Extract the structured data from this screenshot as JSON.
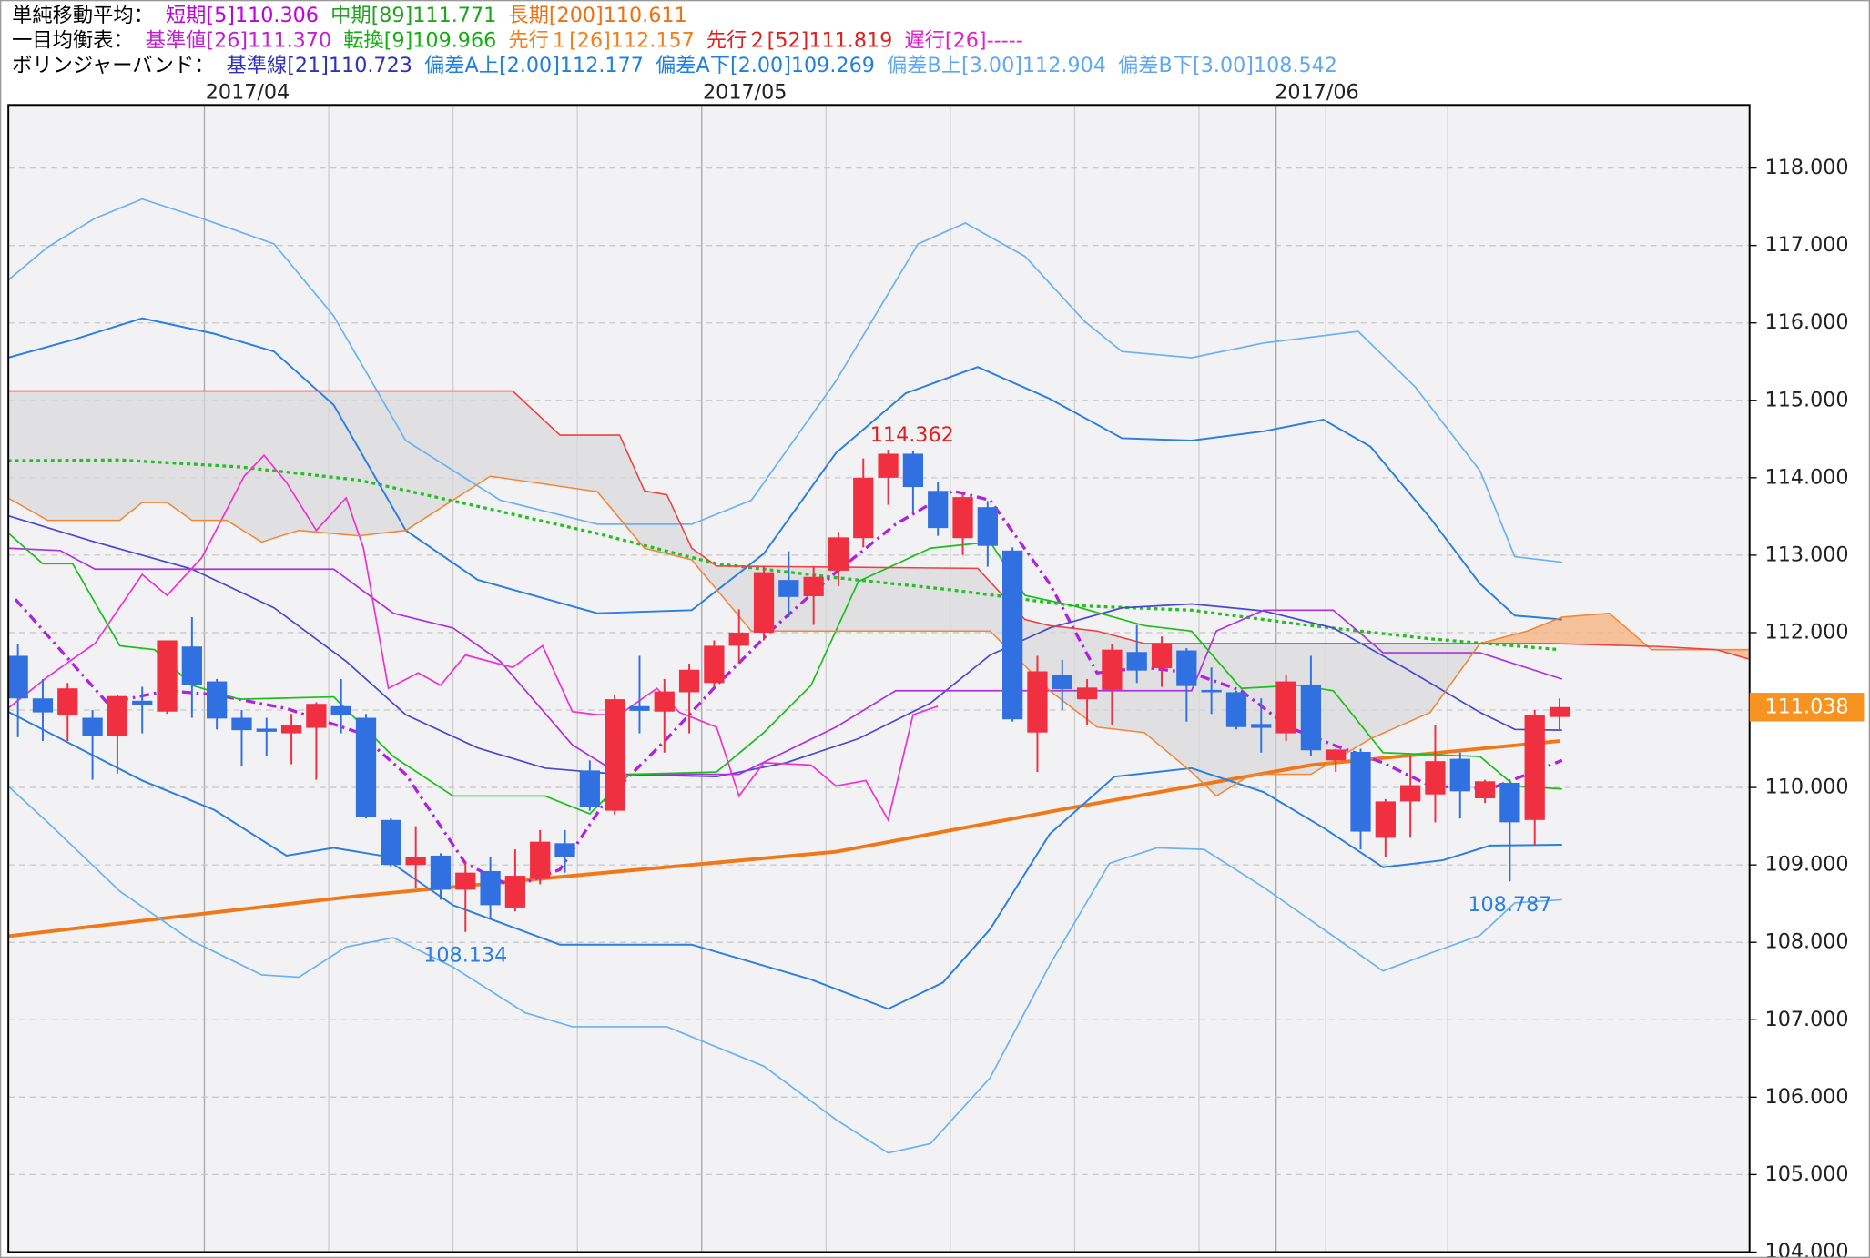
{
  "chart_data": {
    "type": "candlestick",
    "header": [
      [
        {
          "text": "単純移動平均：",
          "color": "#000000"
        },
        {
          "text": "短期[5]110.306",
          "color": "#c000e0"
        },
        {
          "text": "中期[89]111.771",
          "color": "#1ea51e"
        },
        {
          "text": "長期[200]110.611",
          "color": "#f07010"
        }
      ],
      [
        {
          "text": "一目均衡表：",
          "color": "#000000"
        },
        {
          "text": "基準値[26]111.370",
          "color": "#c020d0"
        },
        {
          "text": "転換[9]109.966",
          "color": "#10b010"
        },
        {
          "text": "先行１[26]112.157",
          "color": "#f08020"
        },
        {
          "text": "先行２[52]111.819",
          "color": "#e02020"
        },
        {
          "text": "遅行[26]-----",
          "color": "#e020d0"
        }
      ],
      [
        {
          "text": "ボリンジャーバンド：",
          "color": "#000000"
        },
        {
          "text": "基準線[21]110.723",
          "color": "#3030c0"
        },
        {
          "text": "偏差A上[2.00]112.177",
          "color": "#2080e0"
        },
        {
          "text": "偏差A下[2.00]109.269",
          "color": "#2080e0"
        },
        {
          "text": "偏差B上[3.00]112.904",
          "color": "#60a8f0"
        },
        {
          "text": "偏差B下[3.00]108.542",
          "color": "#60a8f0"
        }
      ]
    ],
    "categories": [
      null,
      null,
      null,
      null,
      null,
      null,
      null,
      null,
      null,
      "2017/04",
      null,
      null,
      null,
      null,
      null,
      null,
      null,
      null,
      null,
      null,
      null,
      null,
      null,
      null,
      null,
      null,
      null,
      null,
      null,
      "2017/05",
      null,
      null,
      null,
      null,
      null,
      null,
      null,
      null,
      null,
      null,
      null,
      null,
      null,
      null,
      null,
      null,
      null,
      null,
      null,
      null,
      null,
      null,
      "2017/06",
      null,
      null,
      null,
      null,
      null,
      null,
      null,
      null,
      null,
      null
    ],
    "open": [
      111.7,
      111.15,
      110.94,
      110.9,
      110.66,
      111.12,
      110.98,
      111.82,
      111.37,
      110.9,
      110.76,
      110.7,
      110.77,
      111.05,
      110.9,
      109.58,
      109.0,
      109.12,
      108.68,
      108.92,
      108.45,
      108.82,
      109.28,
      110.22,
      109.7,
      111.05,
      110.98,
      111.23,
      111.35,
      111.83,
      112.0,
      112.68,
      112.47,
      112.8,
      113.22,
      114.0,
      114.31,
      113.83,
      113.22,
      113.62,
      113.06,
      110.71,
      111.45,
      111.14,
      111.26,
      111.75,
      111.54,
      111.77,
      111.26,
      111.23,
      110.82,
      110.7,
      111.33,
      110.35,
      110.46,
      109.35,
      109.82,
      109.91,
      110.37,
      109.86,
      110.06,
      109.58,
      110.91
    ],
    "high": [
      111.85,
      111.4,
      111.35,
      111.0,
      111.2,
      111.3,
      111.9,
      112.2,
      111.4,
      111.0,
      110.9,
      110.95,
      111.1,
      111.4,
      110.95,
      109.6,
      109.5,
      109.15,
      109.05,
      109.1,
      109.2,
      109.45,
      109.45,
      110.35,
      111.2,
      111.7,
      111.4,
      111.6,
      111.9,
      112.3,
      112.85,
      113.05,
      112.85,
      113.3,
      114.25,
      114.362,
      114.35,
      113.95,
      113.8,
      113.7,
      113.1,
      111.7,
      111.65,
      111.4,
      111.85,
      112.1,
      111.95,
      111.8,
      111.55,
      111.25,
      111.15,
      111.45,
      111.7,
      110.5,
      110.5,
      109.85,
      110.4,
      110.8,
      110.45,
      110.1,
      110.05,
      111.0,
      111.15
    ],
    "low": [
      110.65,
      110.6,
      110.6,
      110.1,
      110.18,
      110.7,
      110.95,
      110.9,
      110.75,
      110.27,
      110.4,
      110.3,
      110.1,
      110.7,
      109.6,
      108.98,
      108.7,
      108.55,
      108.134,
      108.3,
      108.4,
      108.75,
      108.9,
      109.7,
      109.65,
      110.7,
      110.45,
      110.7,
      111.3,
      111.6,
      111.9,
      112.2,
      112.1,
      112.6,
      113.1,
      113.65,
      113.55,
      113.25,
      113.0,
      112.85,
      110.85,
      110.2,
      111.0,
      110.8,
      110.8,
      111.35,
      111.3,
      110.85,
      110.95,
      110.75,
      110.45,
      110.6,
      110.4,
      110.2,
      109.2,
      109.1,
      109.35,
      109.55,
      109.6,
      109.8,
      108.787,
      109.25,
      110.75
    ],
    "close": [
      111.15,
      110.97,
      111.28,
      110.66,
      111.18,
      111.06,
      111.9,
      111.32,
      110.89,
      110.74,
      110.72,
      110.8,
      111.08,
      110.94,
      109.62,
      109.0,
      109.1,
      108.68,
      108.9,
      108.48,
      108.86,
      109.3,
      109.1,
      109.75,
      111.14,
      110.99,
      111.24,
      111.52,
      111.83,
      112.0,
      112.78,
      112.46,
      112.72,
      113.23,
      114.0,
      114.31,
      113.88,
      113.35,
      113.75,
      113.12,
      110.88,
      111.5,
      111.27,
      111.29,
      111.78,
      111.51,
      111.86,
      111.31,
      111.23,
      110.78,
      110.77,
      111.37,
      110.48,
      110.49,
      109.43,
      109.82,
      110.03,
      110.34,
      109.95,
      110.08,
      109.55,
      110.94,
      111.038
    ],
    "up_color": "#f03040",
    "down_color": "#3070e0",
    "high_label_index": 35,
    "low_label_indices": [
      18,
      60
    ],
    "ylim": [
      104,
      118.815
    ],
    "yticks": [
      {
        "value": 104,
        "label": "104.000"
      },
      {
        "value": 105,
        "label": "105.000"
      },
      {
        "value": 106,
        "label": "106.000"
      },
      {
        "value": 107,
        "label": "107.000"
      },
      {
        "value": 108,
        "label": "108.000"
      },
      {
        "value": 109,
        "label": "109.000"
      },
      {
        "value": 110,
        "label": "110.000"
      },
      {
        "value": 111,
        "label": "111.000"
      },
      {
        "value": 112,
        "label": "112.000"
      },
      {
        "value": 113,
        "label": "113.000"
      },
      {
        "value": 114,
        "label": "114.000"
      },
      {
        "value": 115,
        "label": "115.000"
      },
      {
        "value": 116,
        "label": "116.000"
      },
      {
        "value": 117,
        "label": "117.000"
      },
      {
        "value": 118,
        "label": "118.000"
      }
    ],
    "grid": true,
    "price_tag_color": "#f7931e",
    "cloud": {
      "span_a": 11,
      "span_b": 12,
      "bear_color": "#d8d8dc",
      "bull_color": "#f5b88a"
    },
    "overlays": [
      {
        "color": "#f07818",
        "width": 3,
        "dash": "none",
        "x": [
          -0.4,
          13.7,
          23.3,
          32.9,
          42.4,
          52,
          62
        ],
        "values": [
          108.08,
          108.6,
          108.89,
          109.17,
          109.74,
          110.29,
          110.6
        ]
      },
      {
        "color": "#22c022",
        "width": 2.5,
        "dash": "3 3",
        "x": [
          -0.4,
          4.1,
          8.9,
          13.7,
          18.5,
          23.3,
          28.1,
          32.9,
          37.6,
          42.4,
          47.2,
          52,
          56.8,
          62
        ],
        "values": [
          114.22,
          114.23,
          114.14,
          113.97,
          113.63,
          113.28,
          112.89,
          112.71,
          112.55,
          112.35,
          112.29,
          112.09,
          111.92,
          111.78
        ]
      },
      {
        "color": "#b020e0",
        "width": 2.5,
        "dash": "8 4 2 4",
        "x": [
          -0.1,
          1.7,
          3.6,
          6,
          7.9,
          10.8,
          13.7,
          15.6,
          18,
          19.9,
          21.8,
          23.7,
          26.1,
          28.1,
          30.5,
          32.9,
          35.3,
          37.6,
          39.1,
          41.5,
          43.4,
          45.3,
          47.2,
          49.2,
          51.1,
          52.9,
          54.9,
          56.8,
          59.2,
          62.1
        ],
        "values": [
          112.43,
          111.78,
          111.09,
          111.25,
          111.2,
          111.02,
          110.71,
          110.17,
          109.02,
          108.71,
          108.94,
          109.86,
          110.63,
          111.32,
          112.09,
          112.78,
          113.4,
          113.83,
          113.71,
          112.63,
          111.48,
          111.55,
          111.48,
          111.25,
          110.78,
          110.55,
          110.32,
          110.02,
          109.98,
          110.35
        ]
      },
      {
        "color": "#2a7fe0",
        "width": 1.5,
        "dash": "none",
        "x": [
          -0.4,
          2.2,
          5,
          7.9,
          10.3,
          12.7,
          15.6,
          18.5,
          23.3,
          27.1,
          30,
          32.9,
          35.7,
          38.6,
          41.5,
          44.4,
          47.2,
          50.1,
          52.5,
          54.4,
          56.8,
          58.8,
          60.2,
          62.1
        ],
        "values": [
          115.55,
          115.78,
          116.06,
          115.86,
          115.63,
          114.94,
          113.32,
          112.68,
          112.25,
          112.29,
          113.02,
          114.32,
          115.09,
          115.43,
          115.02,
          114.51,
          114.48,
          114.6,
          114.75,
          114.4,
          113.48,
          112.63,
          112.22,
          112.17
        ]
      },
      {
        "color": "#2a7fe0",
        "width": 1.5,
        "dash": "none",
        "x": [
          -0.4,
          2.2,
          5,
          7.9,
          10.8,
          12.7,
          14.6,
          17.5,
          21.8,
          27.1,
          31.9,
          35,
          37.2,
          39.1,
          41.5,
          44.1,
          47.2,
          50.1,
          52.5,
          54.9,
          57.3,
          59.2,
          62.1
        ],
        "values": [
          110.98,
          110.55,
          110.09,
          109.71,
          109.12,
          109.22,
          109.12,
          108.48,
          107.97,
          107.97,
          107.52,
          107.14,
          107.48,
          108.17,
          109.4,
          110.14,
          110.25,
          109.94,
          109.48,
          108.97,
          109.06,
          109.25,
          109.26
        ]
      },
      {
        "color": "#6ab2f2",
        "width": 1.3,
        "dash": "none",
        "x": [
          -0.4,
          1.2,
          3.1,
          5,
          7.4,
          10.3,
          12.7,
          15.6,
          19.4,
          23.3,
          27.1,
          29.5,
          32.9,
          36.2,
          38.1,
          40.5,
          42.9,
          44.4,
          47.2,
          50.1,
          53.9,
          56.2,
          58.8,
          60.2,
          62.1
        ],
        "values": [
          116.55,
          116.98,
          117.35,
          117.6,
          117.35,
          117.02,
          116.09,
          114.48,
          113.71,
          113.4,
          113.4,
          113.71,
          115.25,
          117.02,
          117.29,
          116.86,
          116.02,
          115.63,
          115.55,
          115.74,
          115.89,
          115.17,
          114.09,
          112.98,
          112.91
        ]
      },
      {
        "color": "#6ab2f2",
        "width": 1.3,
        "dash": "none",
        "x": [
          -0.4,
          1.2,
          4.1,
          7,
          9.8,
          11.3,
          13.2,
          15.1,
          17.5,
          20.4,
          22.3,
          26.1,
          30,
          32.9,
          35,
          36.7,
          39.1,
          41.5,
          43.9,
          45.8,
          47.7,
          50.1,
          52.5,
          54.9,
          56.8,
          58.8,
          60.2,
          62.1
        ],
        "values": [
          110.02,
          109.55,
          108.66,
          108.02,
          107.58,
          107.55,
          107.94,
          108.06,
          107.68,
          107.09,
          106.91,
          106.91,
          106.4,
          105.71,
          105.28,
          105.4,
          106.25,
          107.71,
          109.02,
          109.22,
          109.2,
          108.71,
          108.17,
          107.63,
          107.86,
          108.09,
          108.51,
          108.55
        ]
      },
      {
        "color": "#4848d0",
        "width": 1.3,
        "dash": "none",
        "x": [
          -0.4,
          3.1,
          7,
          10.3,
          13.2,
          15.6,
          18.5,
          21.2,
          24.2,
          28.1,
          30.9,
          33.8,
          36.7,
          39.1,
          41.5,
          44.4,
          47.2,
          50.1,
          52.9,
          55.9,
          58.8,
          60.2,
          62.1
        ],
        "values": [
          113.51,
          113.17,
          112.82,
          112.32,
          111.63,
          110.94,
          110.51,
          110.25,
          110.17,
          110.14,
          110.32,
          110.63,
          111.09,
          111.71,
          112.06,
          112.32,
          112.37,
          112.28,
          112.06,
          111.52,
          110.97,
          110.75,
          110.74
        ]
      },
      {
        "color": "#b030e0",
        "width": 1.3,
        "dash": "none",
        "x": [
          -0.4,
          1.7,
          3.1,
          7,
          12.7,
          15.1,
          17.5,
          19.4,
          22.3,
          24.2,
          29,
          32.9,
          35.3,
          42.4,
          47.2,
          48.2,
          50.1,
          52.9,
          54.9,
          58.8,
          62.1
        ],
        "values": [
          113.09,
          113.06,
          112.82,
          112.82,
          112.82,
          112.25,
          112.06,
          111.63,
          110.55,
          110.17,
          110.17,
          110.78,
          111.25,
          111.25,
          111.25,
          112.02,
          112.29,
          112.29,
          111.74,
          111.74,
          111.4
        ]
      },
      {
        "color": "#18c018",
        "width": 1.3,
        "dash": "none",
        "x": [
          -0.4,
          1,
          2.2,
          4.1,
          5.5,
          7,
          8.9,
          12.7,
          15.1,
          17.5,
          21.2,
          23,
          24.6,
          28.1,
          30,
          31.9,
          33.8,
          36.7,
          39.1,
          40.5,
          42.4,
          45.3,
          47.2,
          49.2,
          51.5,
          52.9,
          54.9,
          58.8,
          60.2,
          62.1
        ],
        "values": [
          113.29,
          112.89,
          112.89,
          111.83,
          111.78,
          111.32,
          111.14,
          111.17,
          110.4,
          109.89,
          109.89,
          109.66,
          110.17,
          110.2,
          110.71,
          111.32,
          112.66,
          113.09,
          113.17,
          112.48,
          112.35,
          112.09,
          112.02,
          111.28,
          111.32,
          111.25,
          110.45,
          110.4,
          110.02,
          109.98
        ]
      },
      {
        "color": "#f030d0",
        "width": 1.3,
        "dash": "none",
        "x": [
          -0.4,
          1.2,
          3.1,
          5,
          6,
          7.4,
          9.1,
          9.9,
          10.8,
          12,
          13.2,
          13.9,
          14.9,
          16.1,
          17,
          18,
          19.9,
          21.1,
          22.3,
          23.3,
          24.2,
          25.7,
          26.6,
          28.1,
          29,
          30,
          31.9,
          32.9,
          34.1,
          35,
          36,
          37
        ],
        "values": [
          111.02,
          111.43,
          111.86,
          112.75,
          112.48,
          112.97,
          114.02,
          114.29,
          113.94,
          113.32,
          113.74,
          113.09,
          111.28,
          111.48,
          111.32,
          111.71,
          111.55,
          111.83,
          110.98,
          110.94,
          110.94,
          111.28,
          110.97,
          110.78,
          109.89,
          110.32,
          110.29,
          110.02,
          110.09,
          109.58,
          110.94,
          111.05
        ]
      },
      {
        "color": "#f08838",
        "width": 1.2,
        "dash": "none",
        "x": [
          -0.4,
          1.2,
          4.1,
          5,
          6,
          7,
          8.4,
          9.8,
          11.3,
          13.7,
          15.6,
          19,
          23.3,
          25.2,
          27.1,
          29.5,
          37.6,
          39.1,
          41.5,
          43.4,
          45.3,
          47.2,
          48.2,
          49.6,
          52,
          54.4,
          56.8,
          58.8,
          60.7,
          62.1,
          64,
          65.7,
          68.3,
          69.6
        ],
        "values": [
          113.74,
          113.45,
          113.45,
          113.68,
          113.68,
          113.45,
          113.45,
          113.17,
          113.32,
          113.25,
          113.32,
          114.02,
          113.82,
          113.09,
          112.94,
          112.02,
          112.02,
          112.02,
          111.25,
          110.78,
          110.71,
          110.2,
          109.89,
          110.17,
          110.17,
          110.63,
          110.97,
          111.86,
          112.02,
          112.2,
          112.25,
          111.78,
          111.78,
          111.78
        ]
      },
      {
        "color": "#f04040",
        "width": 1.2,
        "dash": "none",
        "x": [
          -0.4,
          19.9,
          21.8,
          24.2,
          25.2,
          26.1,
          27.1,
          28.1,
          38.6,
          40.5,
          41.5,
          43.4,
          45.3,
          61.6,
          66,
          68.3,
          69.6
        ],
        "values": [
          115.12,
          115.12,
          114.55,
          114.55,
          113.83,
          113.78,
          113.09,
          112.86,
          112.83,
          112.17,
          112.09,
          112.02,
          111.86,
          111.86,
          111.82,
          111.78,
          111.66
        ]
      }
    ]
  }
}
